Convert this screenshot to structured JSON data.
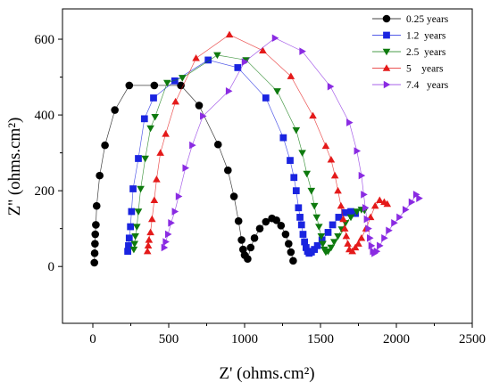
{
  "chart_data": {
    "type": "scatter",
    "xlabel": "Z' (ohms.cm²)",
    "ylabel": "Z'' (ohms.cm²)",
    "xlim": [
      -200,
      2500
    ],
    "ylim": [
      -150,
      680
    ],
    "xticks": [
      0,
      500,
      1000,
      1500,
      2000,
      2500
    ],
    "yticks": [
      0,
      200,
      400,
      600
    ],
    "grid": false,
    "legend_position": "top-right",
    "series": [
      {
        "name": "0.25 years",
        "color": "#000000",
        "marker": "circle",
        "points": [
          [
            10,
            10
          ],
          [
            12,
            35
          ],
          [
            14,
            60
          ],
          [
            16,
            85
          ],
          [
            20,
            110
          ],
          [
            25,
            160
          ],
          [
            45,
            240
          ],
          [
            80,
            320
          ],
          [
            145,
            413
          ],
          [
            240,
            478
          ],
          [
            405,
            478
          ],
          [
            580,
            478
          ],
          [
            700,
            425
          ],
          [
            825,
            322
          ],
          [
            890,
            254
          ],
          [
            930,
            185
          ],
          [
            960,
            120
          ],
          [
            980,
            70
          ],
          [
            990,
            45
          ],
          [
            1000,
            30
          ],
          [
            1020,
            20
          ],
          [
            1040,
            50
          ],
          [
            1065,
            75
          ],
          [
            1100,
            100
          ],
          [
            1140,
            118
          ],
          [
            1180,
            127
          ],
          [
            1210,
            122
          ],
          [
            1240,
            108
          ],
          [
            1270,
            85
          ],
          [
            1290,
            60
          ],
          [
            1305,
            38
          ],
          [
            1320,
            15
          ]
        ]
      },
      {
        "name": "1.2  years",
        "color": "#1a24e0",
        "marker": "square",
        "points": [
          [
            230,
            40
          ],
          [
            235,
            55
          ],
          [
            240,
            75
          ],
          [
            248,
            105
          ],
          [
            255,
            145
          ],
          [
            265,
            205
          ],
          [
            300,
            285
          ],
          [
            340,
            390
          ],
          [
            400,
            445
          ],
          [
            540,
            490
          ],
          [
            760,
            545
          ],
          [
            955,
            525
          ],
          [
            1140,
            445
          ],
          [
            1255,
            340
          ],
          [
            1300,
            280
          ],
          [
            1325,
            235
          ],
          [
            1340,
            200
          ],
          [
            1355,
            155
          ],
          [
            1365,
            130
          ],
          [
            1375,
            110
          ],
          [
            1385,
            85
          ],
          [
            1395,
            65
          ],
          [
            1405,
            50
          ],
          [
            1415,
            40
          ],
          [
            1425,
            35
          ],
          [
            1440,
            38
          ],
          [
            1460,
            45
          ],
          [
            1480,
            55
          ],
          [
            1510,
            70
          ],
          [
            1550,
            90
          ],
          [
            1580,
            110
          ],
          [
            1620,
            130
          ],
          [
            1660,
            142
          ],
          [
            1700,
            145
          ],
          [
            1730,
            140
          ]
        ]
      },
      {
        "name": "2.5  years",
        "color": "#0e7a0e",
        "marker": "triangle-down",
        "points": [
          [
            270,
            45
          ],
          [
            275,
            60
          ],
          [
            280,
            80
          ],
          [
            290,
            105
          ],
          [
            300,
            145
          ],
          [
            315,
            205
          ],
          [
            345,
            285
          ],
          [
            380,
            365
          ],
          [
            410,
            395
          ],
          [
            490,
            485
          ],
          [
            590,
            498
          ],
          [
            820,
            558
          ],
          [
            1010,
            545
          ],
          [
            1215,
            463
          ],
          [
            1340,
            360
          ],
          [
            1380,
            300
          ],
          [
            1410,
            245
          ],
          [
            1440,
            200
          ],
          [
            1460,
            160
          ],
          [
            1475,
            130
          ],
          [
            1490,
            105
          ],
          [
            1505,
            80
          ],
          [
            1515,
            60
          ],
          [
            1525,
            45
          ],
          [
            1535,
            38
          ],
          [
            1550,
            40
          ],
          [
            1570,
            50
          ],
          [
            1590,
            65
          ],
          [
            1615,
            80
          ],
          [
            1640,
            98
          ],
          [
            1665,
            115
          ],
          [
            1700,
            130
          ],
          [
            1740,
            145
          ],
          [
            1770,
            150
          ],
          [
            1790,
            148
          ]
        ]
      },
      {
        "name": "5    years",
        "color": "#e41a1a",
        "marker": "triangle-up",
        "points": [
          [
            360,
            40
          ],
          [
            365,
            55
          ],
          [
            370,
            70
          ],
          [
            380,
            90
          ],
          [
            390,
            125
          ],
          [
            405,
            175
          ],
          [
            420,
            230
          ],
          [
            445,
            300
          ],
          [
            480,
            350
          ],
          [
            545,
            435
          ],
          [
            680,
            550
          ],
          [
            900,
            612
          ],
          [
            1120,
            570
          ],
          [
            1305,
            502
          ],
          [
            1450,
            398
          ],
          [
            1535,
            318
          ],
          [
            1570,
            282
          ],
          [
            1595,
            240
          ],
          [
            1615,
            200
          ],
          [
            1635,
            160
          ],
          [
            1650,
            125
          ],
          [
            1660,
            100
          ],
          [
            1670,
            80
          ],
          [
            1680,
            60
          ],
          [
            1690,
            45
          ],
          [
            1710,
            40
          ],
          [
            1730,
            50
          ],
          [
            1750,
            60
          ],
          [
            1770,
            75
          ],
          [
            1800,
            100
          ],
          [
            1830,
            130
          ],
          [
            1860,
            160
          ],
          [
            1890,
            175
          ],
          [
            1920,
            170
          ],
          [
            1940,
            165
          ]
        ]
      },
      {
        "name": "7.4   years",
        "color": "#8a2be2",
        "marker": "triangle-right",
        "points": [
          [
            470,
            50
          ],
          [
            480,
            65
          ],
          [
            495,
            85
          ],
          [
            515,
            115
          ],
          [
            540,
            145
          ],
          [
            565,
            185
          ],
          [
            610,
            260
          ],
          [
            655,
            320
          ],
          [
            725,
            397
          ],
          [
            895,
            463
          ],
          [
            1000,
            540
          ],
          [
            1200,
            603
          ],
          [
            1380,
            568
          ],
          [
            1565,
            475
          ],
          [
            1690,
            380
          ],
          [
            1740,
            305
          ],
          [
            1770,
            240
          ],
          [
            1785,
            190
          ],
          [
            1795,
            155
          ],
          [
            1805,
            125
          ],
          [
            1815,
            100
          ],
          [
            1825,
            75
          ],
          [
            1835,
            55
          ],
          [
            1845,
            40
          ],
          [
            1855,
            35
          ],
          [
            1870,
            40
          ],
          [
            1890,
            55
          ],
          [
            1920,
            75
          ],
          [
            1950,
            95
          ],
          [
            1985,
            115
          ],
          [
            2020,
            130
          ],
          [
            2060,
            150
          ],
          [
            2100,
            170
          ],
          [
            2130,
            190
          ],
          [
            2150,
            180
          ]
        ]
      }
    ]
  }
}
